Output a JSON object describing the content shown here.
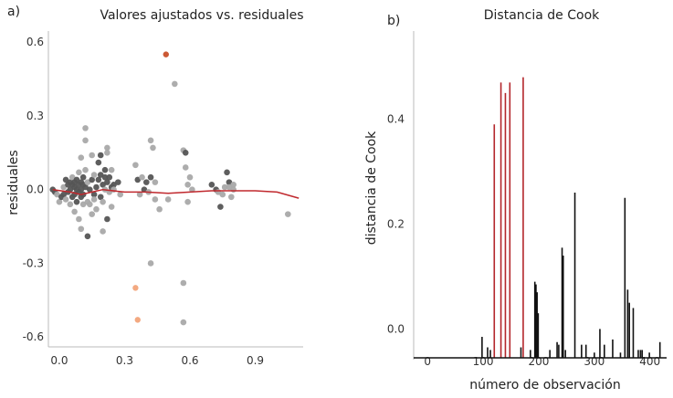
{
  "chart_data": [
    {
      "panel_label": "a)",
      "type": "scatter",
      "title": "Valores ajustados vs. residuales",
      "xlabel": "",
      "ylabel": "residuales",
      "x_ticks": [
        "0.0",
        "0.3",
        "0.6",
        "0.9"
      ],
      "y_ticks": [
        "0.6",
        "0.3",
        "0.0",
        "-0.3",
        "-0.6"
      ],
      "xlim": [
        -0.05,
        1.12
      ],
      "ylim": [
        -0.64,
        0.66
      ],
      "grid": false,
      "colors": {
        "dark": "#555555",
        "light": "#a9a9a9",
        "highlight_main": "#c8502a",
        "highlight_light": "#f2a47a",
        "smooth": "#c0282d"
      },
      "points": [
        {
          "x": -0.03,
          "y": 0.0,
          "c": "dark"
        },
        {
          "x": -0.02,
          "y": -0.01,
          "c": "dark"
        },
        {
          "x": -0.01,
          "y": -0.02,
          "c": "light"
        },
        {
          "x": 0.0,
          "y": -0.05,
          "c": "light"
        },
        {
          "x": 0.01,
          "y": -0.03,
          "c": "dark"
        },
        {
          "x": 0.02,
          "y": 0.01,
          "c": "light"
        },
        {
          "x": 0.02,
          "y": -0.02,
          "c": "dark"
        },
        {
          "x": 0.03,
          "y": 0.04,
          "c": "dark"
        },
        {
          "x": 0.03,
          "y": -0.04,
          "c": "light"
        },
        {
          "x": 0.04,
          "y": 0.02,
          "c": "dark"
        },
        {
          "x": 0.04,
          "y": -0.01,
          "c": "dark"
        },
        {
          "x": 0.05,
          "y": 0.03,
          "c": "dark"
        },
        {
          "x": 0.05,
          "y": -0.06,
          "c": "light"
        },
        {
          "x": 0.05,
          "y": 0.0,
          "c": "dark"
        },
        {
          "x": 0.06,
          "y": 0.02,
          "c": "dark"
        },
        {
          "x": 0.06,
          "y": -0.03,
          "c": "dark"
        },
        {
          "x": 0.06,
          "y": 0.05,
          "c": "light"
        },
        {
          "x": 0.07,
          "y": 0.01,
          "c": "dark"
        },
        {
          "x": 0.07,
          "y": -0.02,
          "c": "dark"
        },
        {
          "x": 0.07,
          "y": 0.03,
          "c": "dark"
        },
        {
          "x": 0.07,
          "y": -0.09,
          "c": "light"
        },
        {
          "x": 0.08,
          "y": 0.04,
          "c": "dark"
        },
        {
          "x": 0.08,
          "y": 0.0,
          "c": "dark"
        },
        {
          "x": 0.08,
          "y": -0.05,
          "c": "dark"
        },
        {
          "x": 0.09,
          "y": 0.02,
          "c": "dark"
        },
        {
          "x": 0.09,
          "y": -0.01,
          "c": "dark"
        },
        {
          "x": 0.09,
          "y": 0.07,
          "c": "light"
        },
        {
          "x": 0.09,
          "y": -0.12,
          "c": "light"
        },
        {
          "x": 0.1,
          "y": 0.03,
          "c": "dark"
        },
        {
          "x": 0.1,
          "y": -0.03,
          "c": "dark"
        },
        {
          "x": 0.1,
          "y": 0.0,
          "c": "dark"
        },
        {
          "x": 0.1,
          "y": 0.13,
          "c": "light"
        },
        {
          "x": 0.1,
          "y": -0.16,
          "c": "light"
        },
        {
          "x": 0.11,
          "y": 0.02,
          "c": "dark"
        },
        {
          "x": 0.11,
          "y": -0.02,
          "c": "dark"
        },
        {
          "x": 0.11,
          "y": 0.05,
          "c": "dark"
        },
        {
          "x": 0.11,
          "y": -0.06,
          "c": "light"
        },
        {
          "x": 0.12,
          "y": 0.01,
          "c": "dark"
        },
        {
          "x": 0.12,
          "y": 0.08,
          "c": "light"
        },
        {
          "x": 0.12,
          "y": 0.25,
          "c": "light"
        },
        {
          "x": 0.12,
          "y": 0.2,
          "c": "light"
        },
        {
          "x": 0.13,
          "y": -0.19,
          "c": "dark"
        },
        {
          "x": 0.13,
          "y": -0.05,
          "c": "light"
        },
        {
          "x": 0.13,
          "y": 0.03,
          "c": "light"
        },
        {
          "x": 0.14,
          "y": -0.06,
          "c": "light"
        },
        {
          "x": 0.14,
          "y": 0.0,
          "c": "dark"
        },
        {
          "x": 0.15,
          "y": -0.1,
          "c": "light"
        },
        {
          "x": 0.15,
          "y": 0.04,
          "c": "dark"
        },
        {
          "x": 0.16,
          "y": -0.02,
          "c": "dark"
        },
        {
          "x": 0.16,
          "y": 0.06,
          "c": "light"
        },
        {
          "x": 0.17,
          "y": -0.08,
          "c": "light"
        },
        {
          "x": 0.17,
          "y": 0.01,
          "c": "dark"
        },
        {
          "x": 0.18,
          "y": 0.11,
          "c": "dark"
        },
        {
          "x": 0.18,
          "y": 0.04,
          "c": "dark"
        },
        {
          "x": 0.19,
          "y": -0.03,
          "c": "dark"
        },
        {
          "x": 0.19,
          "y": 0.06,
          "c": "dark"
        },
        {
          "x": 0.2,
          "y": 0.02,
          "c": "dark"
        },
        {
          "x": 0.2,
          "y": -0.05,
          "c": "light"
        },
        {
          "x": 0.21,
          "y": 0.05,
          "c": "dark"
        },
        {
          "x": 0.21,
          "y": 0.0,
          "c": "light"
        },
        {
          "x": 0.22,
          "y": -0.12,
          "c": "dark"
        },
        {
          "x": 0.22,
          "y": 0.03,
          "c": "dark"
        },
        {
          "x": 0.23,
          "y": 0.05,
          "c": "dark"
        },
        {
          "x": 0.23,
          "y": -0.01,
          "c": "light"
        },
        {
          "x": 0.24,
          "y": 0.01,
          "c": "dark"
        },
        {
          "x": 0.24,
          "y": -0.07,
          "c": "light"
        },
        {
          "x": 0.25,
          "y": 0.02,
          "c": "dark"
        },
        {
          "x": 0.25,
          "y": 0.0,
          "c": "light"
        },
        {
          "x": 0.27,
          "y": 0.03,
          "c": "dark"
        },
        {
          "x": 0.28,
          "y": -0.02,
          "c": "light"
        },
        {
          "x": 0.19,
          "y": 0.14,
          "c": "dark"
        },
        {
          "x": 0.21,
          "y": 0.08,
          "c": "dark"
        },
        {
          "x": 0.22,
          "y": 0.17,
          "c": "light"
        },
        {
          "x": 0.2,
          "y": -0.17,
          "c": "light"
        },
        {
          "x": 0.24,
          "y": 0.08,
          "c": "light"
        },
        {
          "x": 0.22,
          "y": 0.15,
          "c": "light"
        },
        {
          "x": 0.15,
          "y": 0.14,
          "c": "light"
        },
        {
          "x": 0.16,
          "y": -0.04,
          "c": "light"
        },
        {
          "x": 0.35,
          "y": 0.1,
          "c": "light"
        },
        {
          "x": 0.36,
          "y": 0.04,
          "c": "dark"
        },
        {
          "x": 0.37,
          "y": -0.02,
          "c": "light"
        },
        {
          "x": 0.38,
          "y": 0.05,
          "c": "light"
        },
        {
          "x": 0.39,
          "y": 0.0,
          "c": "dark"
        },
        {
          "x": 0.4,
          "y": 0.03,
          "c": "dark"
        },
        {
          "x": 0.41,
          "y": -0.01,
          "c": "light"
        },
        {
          "x": 0.42,
          "y": 0.2,
          "c": "light"
        },
        {
          "x": 0.42,
          "y": 0.05,
          "c": "dark"
        },
        {
          "x": 0.43,
          "y": 0.17,
          "c": "light"
        },
        {
          "x": 0.44,
          "y": 0.03,
          "c": "light"
        },
        {
          "x": 0.44,
          "y": -0.04,
          "c": "light"
        },
        {
          "x": 0.46,
          "y": -0.08,
          "c": "light"
        },
        {
          "x": 0.5,
          "y": -0.04,
          "c": "light"
        },
        {
          "x": 0.42,
          "y": -0.3,
          "c": "light"
        },
        {
          "x": 0.53,
          "y": 0.43,
          "c": "light"
        },
        {
          "x": 0.57,
          "y": 0.16,
          "c": "light"
        },
        {
          "x": 0.58,
          "y": 0.15,
          "c": "dark"
        },
        {
          "x": 0.57,
          "y": -0.38,
          "c": "light"
        },
        {
          "x": 0.57,
          "y": -0.54,
          "c": "light"
        },
        {
          "x": 0.58,
          "y": 0.09,
          "c": "light"
        },
        {
          "x": 0.59,
          "y": 0.02,
          "c": "light"
        },
        {
          "x": 0.6,
          "y": 0.05,
          "c": "light"
        },
        {
          "x": 0.61,
          "y": 0.0,
          "c": "light"
        },
        {
          "x": 0.59,
          "y": -0.05,
          "c": "light"
        },
        {
          "x": 0.7,
          "y": 0.02,
          "c": "dark"
        },
        {
          "x": 0.72,
          "y": 0.0,
          "c": "dark"
        },
        {
          "x": 0.73,
          "y": -0.01,
          "c": "light"
        },
        {
          "x": 0.74,
          "y": -0.07,
          "c": "dark"
        },
        {
          "x": 0.75,
          "y": -0.02,
          "c": "light"
        },
        {
          "x": 0.76,
          "y": 0.01,
          "c": "light"
        },
        {
          "x": 0.77,
          "y": 0.07,
          "c": "dark"
        },
        {
          "x": 0.78,
          "y": 0.03,
          "c": "dark"
        },
        {
          "x": 0.78,
          "y": 0.01,
          "c": "light"
        },
        {
          "x": 0.79,
          "y": -0.03,
          "c": "light"
        },
        {
          "x": 0.8,
          "y": 0.02,
          "c": "light"
        },
        {
          "x": 0.8,
          "y": 0.0,
          "c": "light"
        },
        {
          "x": 1.05,
          "y": -0.1,
          "c": "light"
        },
        {
          "x": 0.49,
          "y": 0.55,
          "c": "highlight_main"
        },
        {
          "x": 0.35,
          "y": -0.4,
          "c": "highlight_light"
        },
        {
          "x": 0.36,
          "y": -0.53,
          "c": "highlight_light"
        }
      ],
      "smooth_line": [
        {
          "x": -0.03,
          "y": 0.0
        },
        {
          "x": 0.05,
          "y": -0.01
        },
        {
          "x": 0.1,
          "y": -0.02
        },
        {
          "x": 0.15,
          "y": -0.01
        },
        {
          "x": 0.2,
          "y": 0.0
        },
        {
          "x": 0.3,
          "y": -0.01
        },
        {
          "x": 0.4,
          "y": -0.01
        },
        {
          "x": 0.5,
          "y": -0.015
        },
        {
          "x": 0.6,
          "y": -0.01
        },
        {
          "x": 0.7,
          "y": -0.005
        },
        {
          "x": 0.8,
          "y": -0.005
        },
        {
          "x": 0.9,
          "y": -0.005
        },
        {
          "x": 1.0,
          "y": -0.01
        },
        {
          "x": 1.1,
          "y": -0.035
        }
      ]
    },
    {
      "panel_label": "b)",
      "type": "bar",
      "title": "Distancia de Cook",
      "xlabel": "número de observación",
      "ylabel": "distancia de Cook",
      "x_ticks": [
        "0",
        "100",
        "200",
        "300",
        "400"
      ],
      "y_ticks": [
        "0.0",
        "0.2",
        "0.4"
      ],
      "xlim": [
        -25,
        430
      ],
      "ylim": [
        -0.055,
        0.575
      ],
      "grid": false,
      "colors": {
        "normal": "#111111",
        "influential": "#b3262b"
      },
      "bars": [
        {
          "x": 98,
          "v": -0.015
        },
        {
          "x": 108,
          "v": -0.035
        },
        {
          "x": 113,
          "v": -0.04
        },
        {
          "x": 120,
          "v": 0.39,
          "c": "influential"
        },
        {
          "x": 132,
          "v": 0.47,
          "c": "influential"
        },
        {
          "x": 140,
          "v": 0.45,
          "c": "influential"
        },
        {
          "x": 148,
          "v": 0.47,
          "c": "influential"
        },
        {
          "x": 172,
          "v": 0.48,
          "c": "influential"
        },
        {
          "x": 168,
          "v": -0.035
        },
        {
          "x": 185,
          "v": -0.04
        },
        {
          "x": 193,
          "v": 0.09
        },
        {
          "x": 195,
          "v": 0.085
        },
        {
          "x": 197,
          "v": 0.07
        },
        {
          "x": 199,
          "v": 0.03
        },
        {
          "x": 220,
          "v": -0.04
        },
        {
          "x": 233,
          "v": -0.025
        },
        {
          "x": 236,
          "v": -0.03
        },
        {
          "x": 242,
          "v": 0.155
        },
        {
          "x": 244,
          "v": 0.14
        },
        {
          "x": 248,
          "v": -0.04
        },
        {
          "x": 265,
          "v": 0.26
        },
        {
          "x": 277,
          "v": -0.03
        },
        {
          "x": 285,
          "v": -0.03
        },
        {
          "x": 300,
          "v": -0.045
        },
        {
          "x": 310,
          "v": 0.0
        },
        {
          "x": 318,
          "v": -0.03
        },
        {
          "x": 333,
          "v": -0.02
        },
        {
          "x": 347,
          "v": -0.045
        },
        {
          "x": 355,
          "v": 0.25
        },
        {
          "x": 360,
          "v": 0.075
        },
        {
          "x": 363,
          "v": 0.05
        },
        {
          "x": 370,
          "v": 0.04
        },
        {
          "x": 379,
          "v": -0.04
        },
        {
          "x": 383,
          "v": -0.04
        },
        {
          "x": 386,
          "v": -0.04
        },
        {
          "x": 399,
          "v": -0.045
        },
        {
          "x": 418,
          "v": -0.025
        }
      ],
      "baseline": -0.055
    }
  ]
}
